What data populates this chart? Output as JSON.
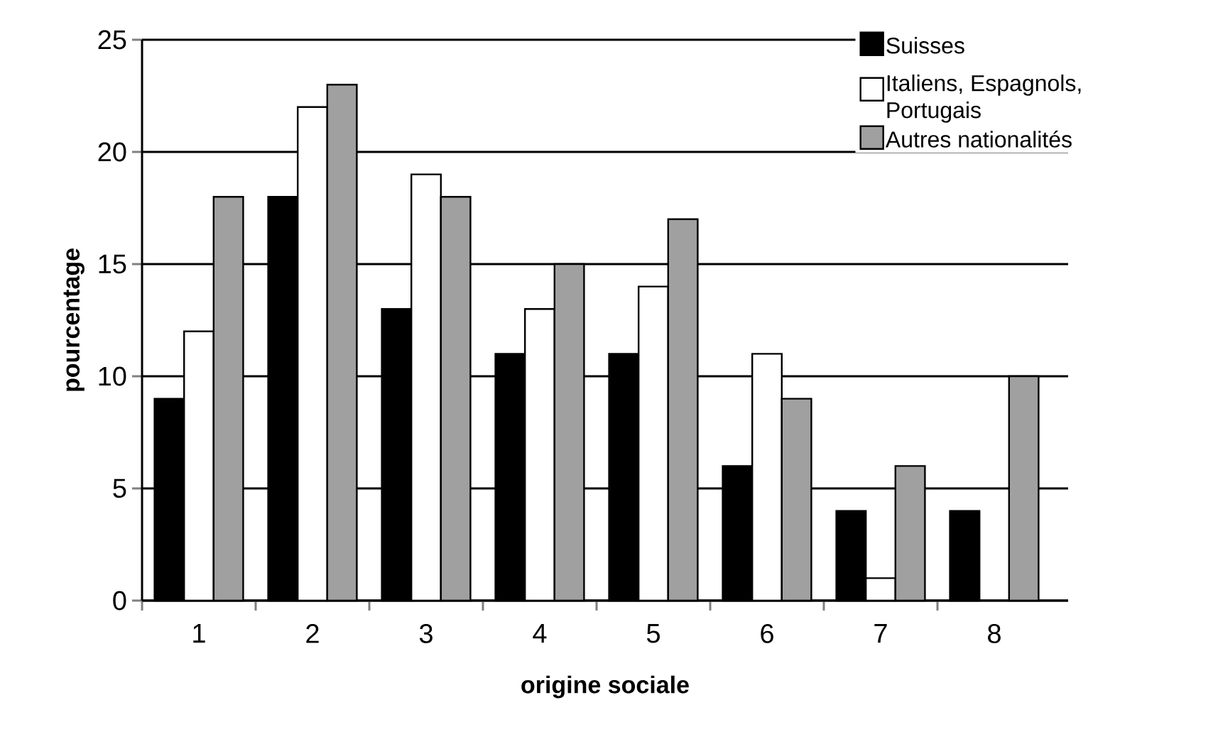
{
  "chart_data": {
    "type": "bar",
    "xlabel": "origine sociale",
    "ylabel": "pourcentage",
    "categories": [
      "1",
      "2",
      "3",
      "4",
      "5",
      "6",
      "7",
      "8"
    ],
    "series": [
      {
        "name": "Suisses",
        "color": "#000000",
        "values": [
          9,
          18,
          13,
          11,
          11,
          6,
          4,
          4
        ]
      },
      {
        "name": "Italiens, Espagnols, Portugais",
        "color": "#ffffff",
        "values": [
          12,
          22,
          19,
          13,
          14,
          11,
          1,
          null
        ]
      },
      {
        "name": "Autres nationalités",
        "color": "#a0a0a0",
        "values": [
          18,
          23,
          18,
          15,
          17,
          9,
          6,
          10
        ]
      }
    ],
    "ylim": [
      0,
      25
    ],
    "yticks": [
      0,
      5,
      10,
      15,
      20,
      25
    ],
    "grid": "y",
    "legend": "top right"
  }
}
